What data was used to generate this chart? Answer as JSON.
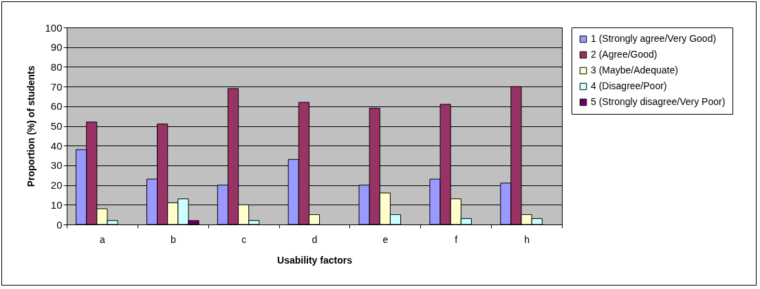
{
  "chart_data": {
    "type": "bar",
    "xlabel": "Usability factors",
    "ylabel": "Proportion (%) of students",
    "categories": [
      "a",
      "b",
      "c",
      "d",
      "e",
      "f",
      "h"
    ],
    "series": [
      {
        "name": "1 (Strongly agree/Very Good)",
        "color": "#9999ff",
        "values": [
          38,
          23,
          20,
          33,
          20,
          23,
          21
        ]
      },
      {
        "name": "2 (Agree/Good)",
        "color": "#993366",
        "values": [
          52,
          51,
          69,
          62,
          59,
          61,
          70
        ]
      },
      {
        "name": "3 (Maybe/Adequate)",
        "color": "#ffffcc",
        "values": [
          8,
          11,
          10,
          5,
          16,
          13,
          5
        ]
      },
      {
        "name": "4 (Disagree/Poor)",
        "color": "#ccffff",
        "values": [
          2,
          13,
          2,
          null,
          5,
          3,
          3
        ]
      },
      {
        "name": "5 (Strongly disagree/Very Poor)",
        "color": "#660066",
        "values": [
          null,
          2,
          null,
          null,
          null,
          null,
          null
        ]
      }
    ],
    "ylim": [
      0,
      100
    ],
    "yticks": [
      0,
      10,
      20,
      30,
      40,
      50,
      60,
      70,
      80,
      90,
      100
    ],
    "grid": "y",
    "legend": "right"
  }
}
